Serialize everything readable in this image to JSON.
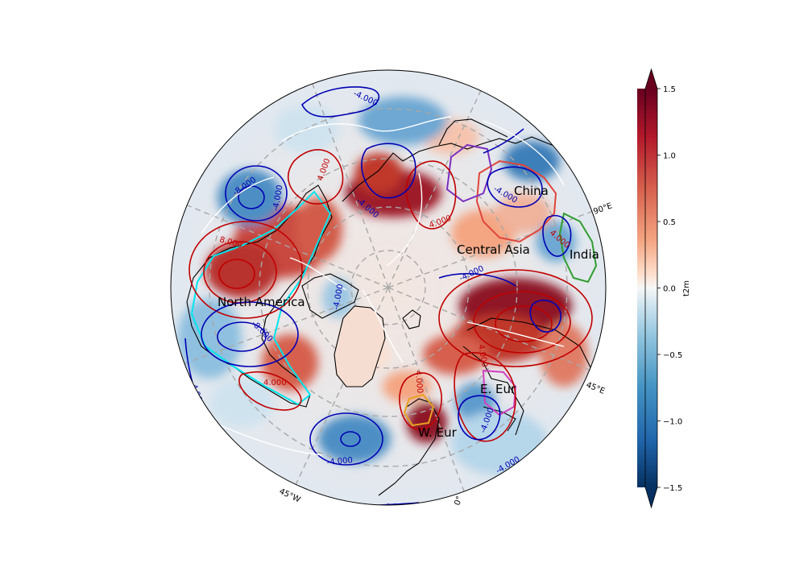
{
  "colors": {
    "cmap_low": "#053061",
    "cmap_mid": "#f7f7f7",
    "cmap_high": "#67001f",
    "contour_positive": "#c00000",
    "contour_negative": "#0000b4",
    "contour_zero": "#ffffff",
    "coast": "#000000",
    "gridline": "#9a9a9a"
  },
  "map": {
    "projection": "north-polar-stereographic",
    "meridian_labels": [
      "90°E",
      "45°E",
      "0°",
      "45°W"
    ],
    "regions": [
      "China",
      "India",
      "Central Asia",
      "North America",
      "E. Eur",
      "W. Eur"
    ],
    "contour_labels": [
      "-4.000",
      "-4.000",
      "-8.000",
      "-4.000",
      "8.000",
      "-8.000",
      "4.000",
      "-4.000",
      "4.000",
      "4.000",
      "-4.000",
      "-4.000",
      "4.000",
      "-4.000",
      "-4.000",
      "4.000",
      "-4.000",
      "-4.000",
      "4.000",
      "-4.000"
    ],
    "contour_label_colors": [
      "#0000b4",
      "#0000b4",
      "#0000b4",
      "#0000b4",
      "#c00000",
      "#0000b4",
      "#c00000",
      "#0000b4",
      "#c00000",
      "#c00000",
      "#0000b4",
      "#0000b4",
      "#c00000",
      "#0000b4",
      "#0000b4",
      "#c00000",
      "#0000b4",
      "#0000b4",
      "#c00000",
      "#0000b4"
    ]
  },
  "colorbar": {
    "label": "t2m",
    "ticks": [
      "1.5",
      "1.0",
      "0.5",
      "0.0",
      "−0.5",
      "−1.0",
      "−1.5"
    ],
    "range": [
      -1.5,
      1.5
    ]
  }
}
